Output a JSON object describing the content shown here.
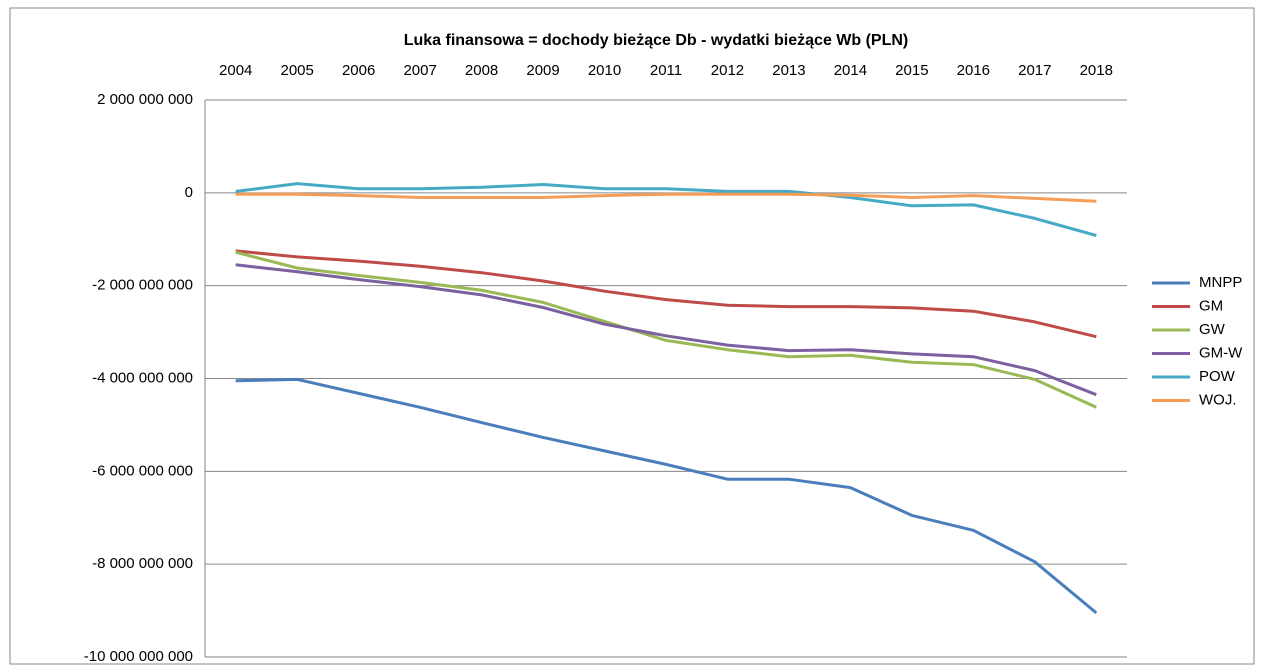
{
  "chart_data": {
    "type": "line",
    "title": "Luka finansowa = dochody bieżące Db - wydatki bieżące Wb (PLN)",
    "categories": [
      "2004",
      "2005",
      "2006",
      "2007",
      "2008",
      "2009",
      "2010",
      "2011",
      "2012",
      "2013",
      "2014",
      "2015",
      "2016",
      "2017",
      "2018"
    ],
    "series": [
      {
        "name": "MNPP",
        "color": "#4a7ebb",
        "values": [
          -4050000000,
          -4020000000,
          -4320000000,
          -4620000000,
          -4950000000,
          -5270000000,
          -5560000000,
          -5850000000,
          -6170000000,
          -6170000000,
          -6350000000,
          -6950000000,
          -7270000000,
          -7950000000,
          -9050000000
        ]
      },
      {
        "name": "GM",
        "color": "#be4b48",
        "values": [
          -1250000000,
          -1380000000,
          -1470000000,
          -1580000000,
          -1720000000,
          -1900000000,
          -2120000000,
          -2300000000,
          -2420000000,
          -2450000000,
          -2450000000,
          -2480000000,
          -2550000000,
          -2780000000,
          -3100000000
        ]
      },
      {
        "name": "GW",
        "color": "#98b954",
        "values": [
          -1280000000,
          -1620000000,
          -1780000000,
          -1930000000,
          -2100000000,
          -2360000000,
          -2770000000,
          -3180000000,
          -3380000000,
          -3530000000,
          -3500000000,
          -3650000000,
          -3700000000,
          -4020000000,
          -4620000000
        ]
      },
      {
        "name": "GM-W",
        "color": "#7d60a0",
        "values": [
          -1550000000,
          -1700000000,
          -1870000000,
          -2020000000,
          -2200000000,
          -2470000000,
          -2830000000,
          -3080000000,
          -3280000000,
          -3400000000,
          -3380000000,
          -3470000000,
          -3530000000,
          -3830000000,
          -4350000000
        ]
      },
      {
        "name": "POW",
        "color": "#46aac5",
        "values": [
          30000000,
          200000000,
          90000000,
          90000000,
          120000000,
          180000000,
          90000000,
          90000000,
          30000000,
          30000000,
          -100000000,
          -280000000,
          -260000000,
          -550000000,
          -920000000
        ]
      },
      {
        "name": "WOJ.",
        "color": "#f59d56",
        "values": [
          -30000000,
          -30000000,
          -60000000,
          -100000000,
          -100000000,
          -100000000,
          -60000000,
          -30000000,
          -30000000,
          -30000000,
          -50000000,
          -100000000,
          -60000000,
          -120000000,
          -180000000
        ]
      }
    ],
    "ylim": [
      -10000000000,
      2000000000
    ],
    "yticks": [
      {
        "value": -10000000000,
        "label": "-10 000 000 000"
      },
      {
        "value": -8000000000,
        "label": "-8 000 000 000"
      },
      {
        "value": -6000000000,
        "label": "-6 000 000 000"
      },
      {
        "value": -4000000000,
        "label": "-4 000 000 000"
      },
      {
        "value": -2000000000,
        "label": "-2 000 000 000"
      },
      0,
      {
        "value": 2000000000,
        "label": "2 000 000 000"
      }
    ],
    "grid": true,
    "legend": "right"
  }
}
